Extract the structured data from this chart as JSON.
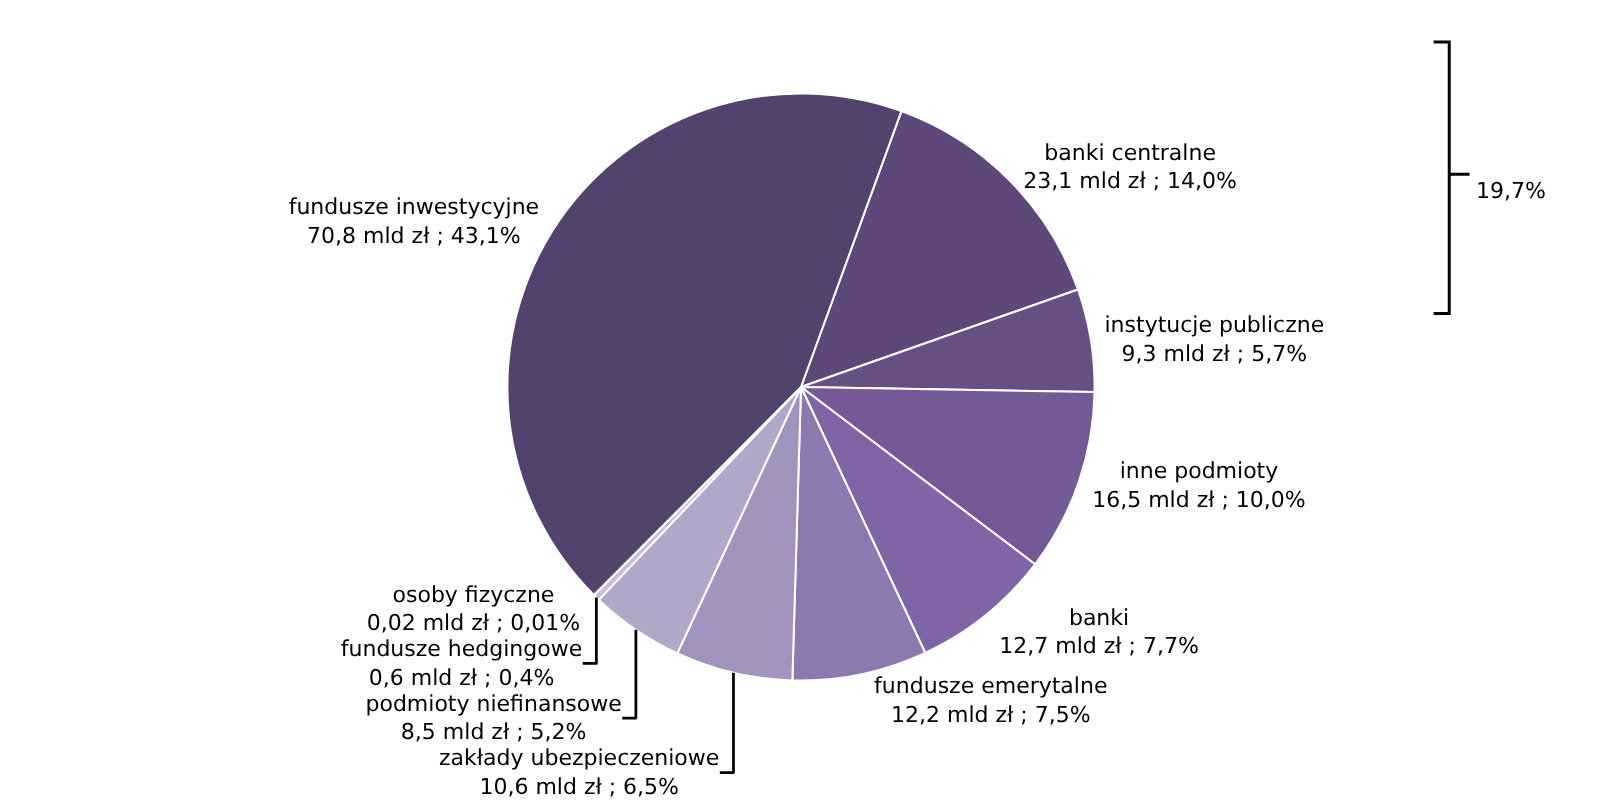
{
  "chart_data": {
    "type": "pie",
    "categories": [
      "banki centralne",
      "instytucje publiczne",
      "inne podmioty",
      "banki",
      "fundusze emerytalne",
      "zakłady ubezpieczeniowe",
      "podmioty niefinansowe",
      "fundusze hedgingowe",
      "osoby fizyczne",
      "fundusze inwestycyjne"
    ],
    "values": [
      23.1,
      9.3,
      16.5,
      12.7,
      12.2,
      10.6,
      8.5,
      0.6,
      0.02,
      70.8
    ],
    "value_labels": [
      "23,1 mld zł ; 14,0%",
      "9,3 mld zł ; 5,7%",
      "16,5 mld zł ; 10,0%",
      "12,7 mld zł ; 7,7%",
      "12,2 mld zł ; 7,5%",
      "10,6 mld zł ; 6,5%",
      "8,5 mld zł ; 5,2%",
      "0,6 mld zł ; 0,4%",
      "0,02 mld zł ; 0,01%",
      "70,8 mld zł ; 43,1%"
    ],
    "colors": [
      "#5e4879",
      "#654f83",
      "#735a97",
      "#7f64a6",
      "#8d78b0",
      "#a394bf",
      "#b3a7c9",
      "#c7bed8",
      "#d8d2e4",
      "#54426e"
    ],
    "annotations": [
      "19,7%"
    ],
    "legend": false
  }
}
